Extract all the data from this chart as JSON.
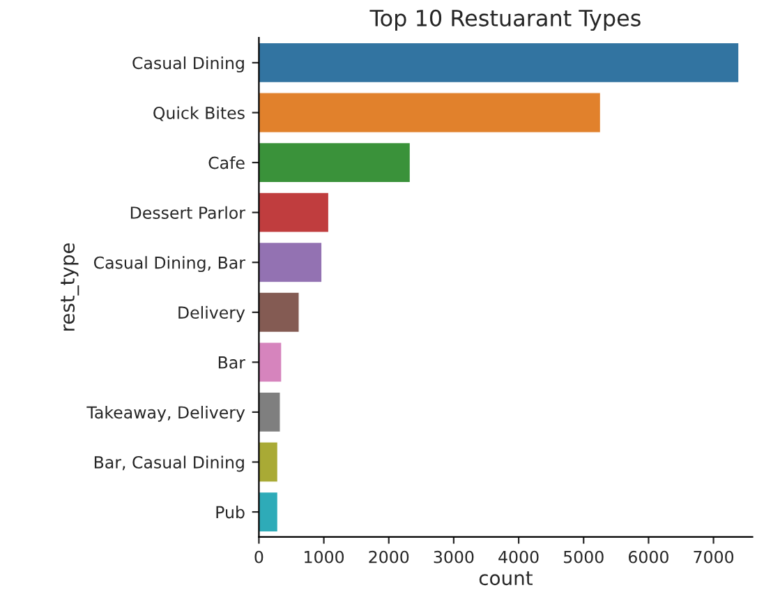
{
  "chart_data": {
    "type": "bar",
    "orientation": "horizontal",
    "title": "Top 10 Restuarant Types",
    "xlabel": "count",
    "ylabel": "rest_type",
    "categories": [
      "Casual Dining",
      "Quick Bites",
      "Cafe",
      "Dessert Parlor",
      "Casual Dining, Bar",
      "Delivery",
      "Bar",
      "Takeaway, Delivery",
      "Bar, Casual Dining",
      "Pub"
    ],
    "values": [
      7390,
      5260,
      2330,
      1075,
      970,
      620,
      350,
      330,
      290,
      290
    ],
    "colors": [
      "#3274a1",
      "#e1812c",
      "#3a923a",
      "#c03d3e",
      "#9372b2",
      "#845b53",
      "#d684bd",
      "#7f7f7f",
      "#a9aa35",
      "#2eabb8"
    ],
    "xlim": [
      0,
      7600
    ],
    "xticks": [
      0,
      1000,
      2000,
      3000,
      4000,
      5000,
      6000,
      7000
    ],
    "grid": false,
    "legend": false
  }
}
